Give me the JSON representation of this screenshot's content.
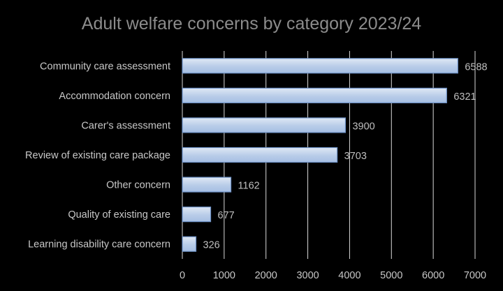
{
  "chart_data": {
    "type": "bar",
    "orientation": "horizontal",
    "title": "Adult welfare concerns by category 2023/24",
    "categories": [
      "Community care assessment",
      "Accommodation concern",
      "Carer's assessment",
      "Review of existing care package",
      "Other concern",
      "Quality of existing care",
      "Learning disability care concern"
    ],
    "values": [
      6588,
      6321,
      3900,
      3703,
      1162,
      677,
      326
    ],
    "xlim": [
      0,
      7000
    ],
    "xticks": [
      0,
      1000,
      2000,
      3000,
      4000,
      5000,
      6000,
      7000
    ],
    "grid": true,
    "data_labels": true,
    "colors": {
      "background": "#000000",
      "bar_fill": "#b8cce8",
      "bar_stroke": "#6f93c8",
      "grid": "#d9d9d9",
      "title": "#8c8c8c",
      "text": "#c8c8c8"
    }
  }
}
